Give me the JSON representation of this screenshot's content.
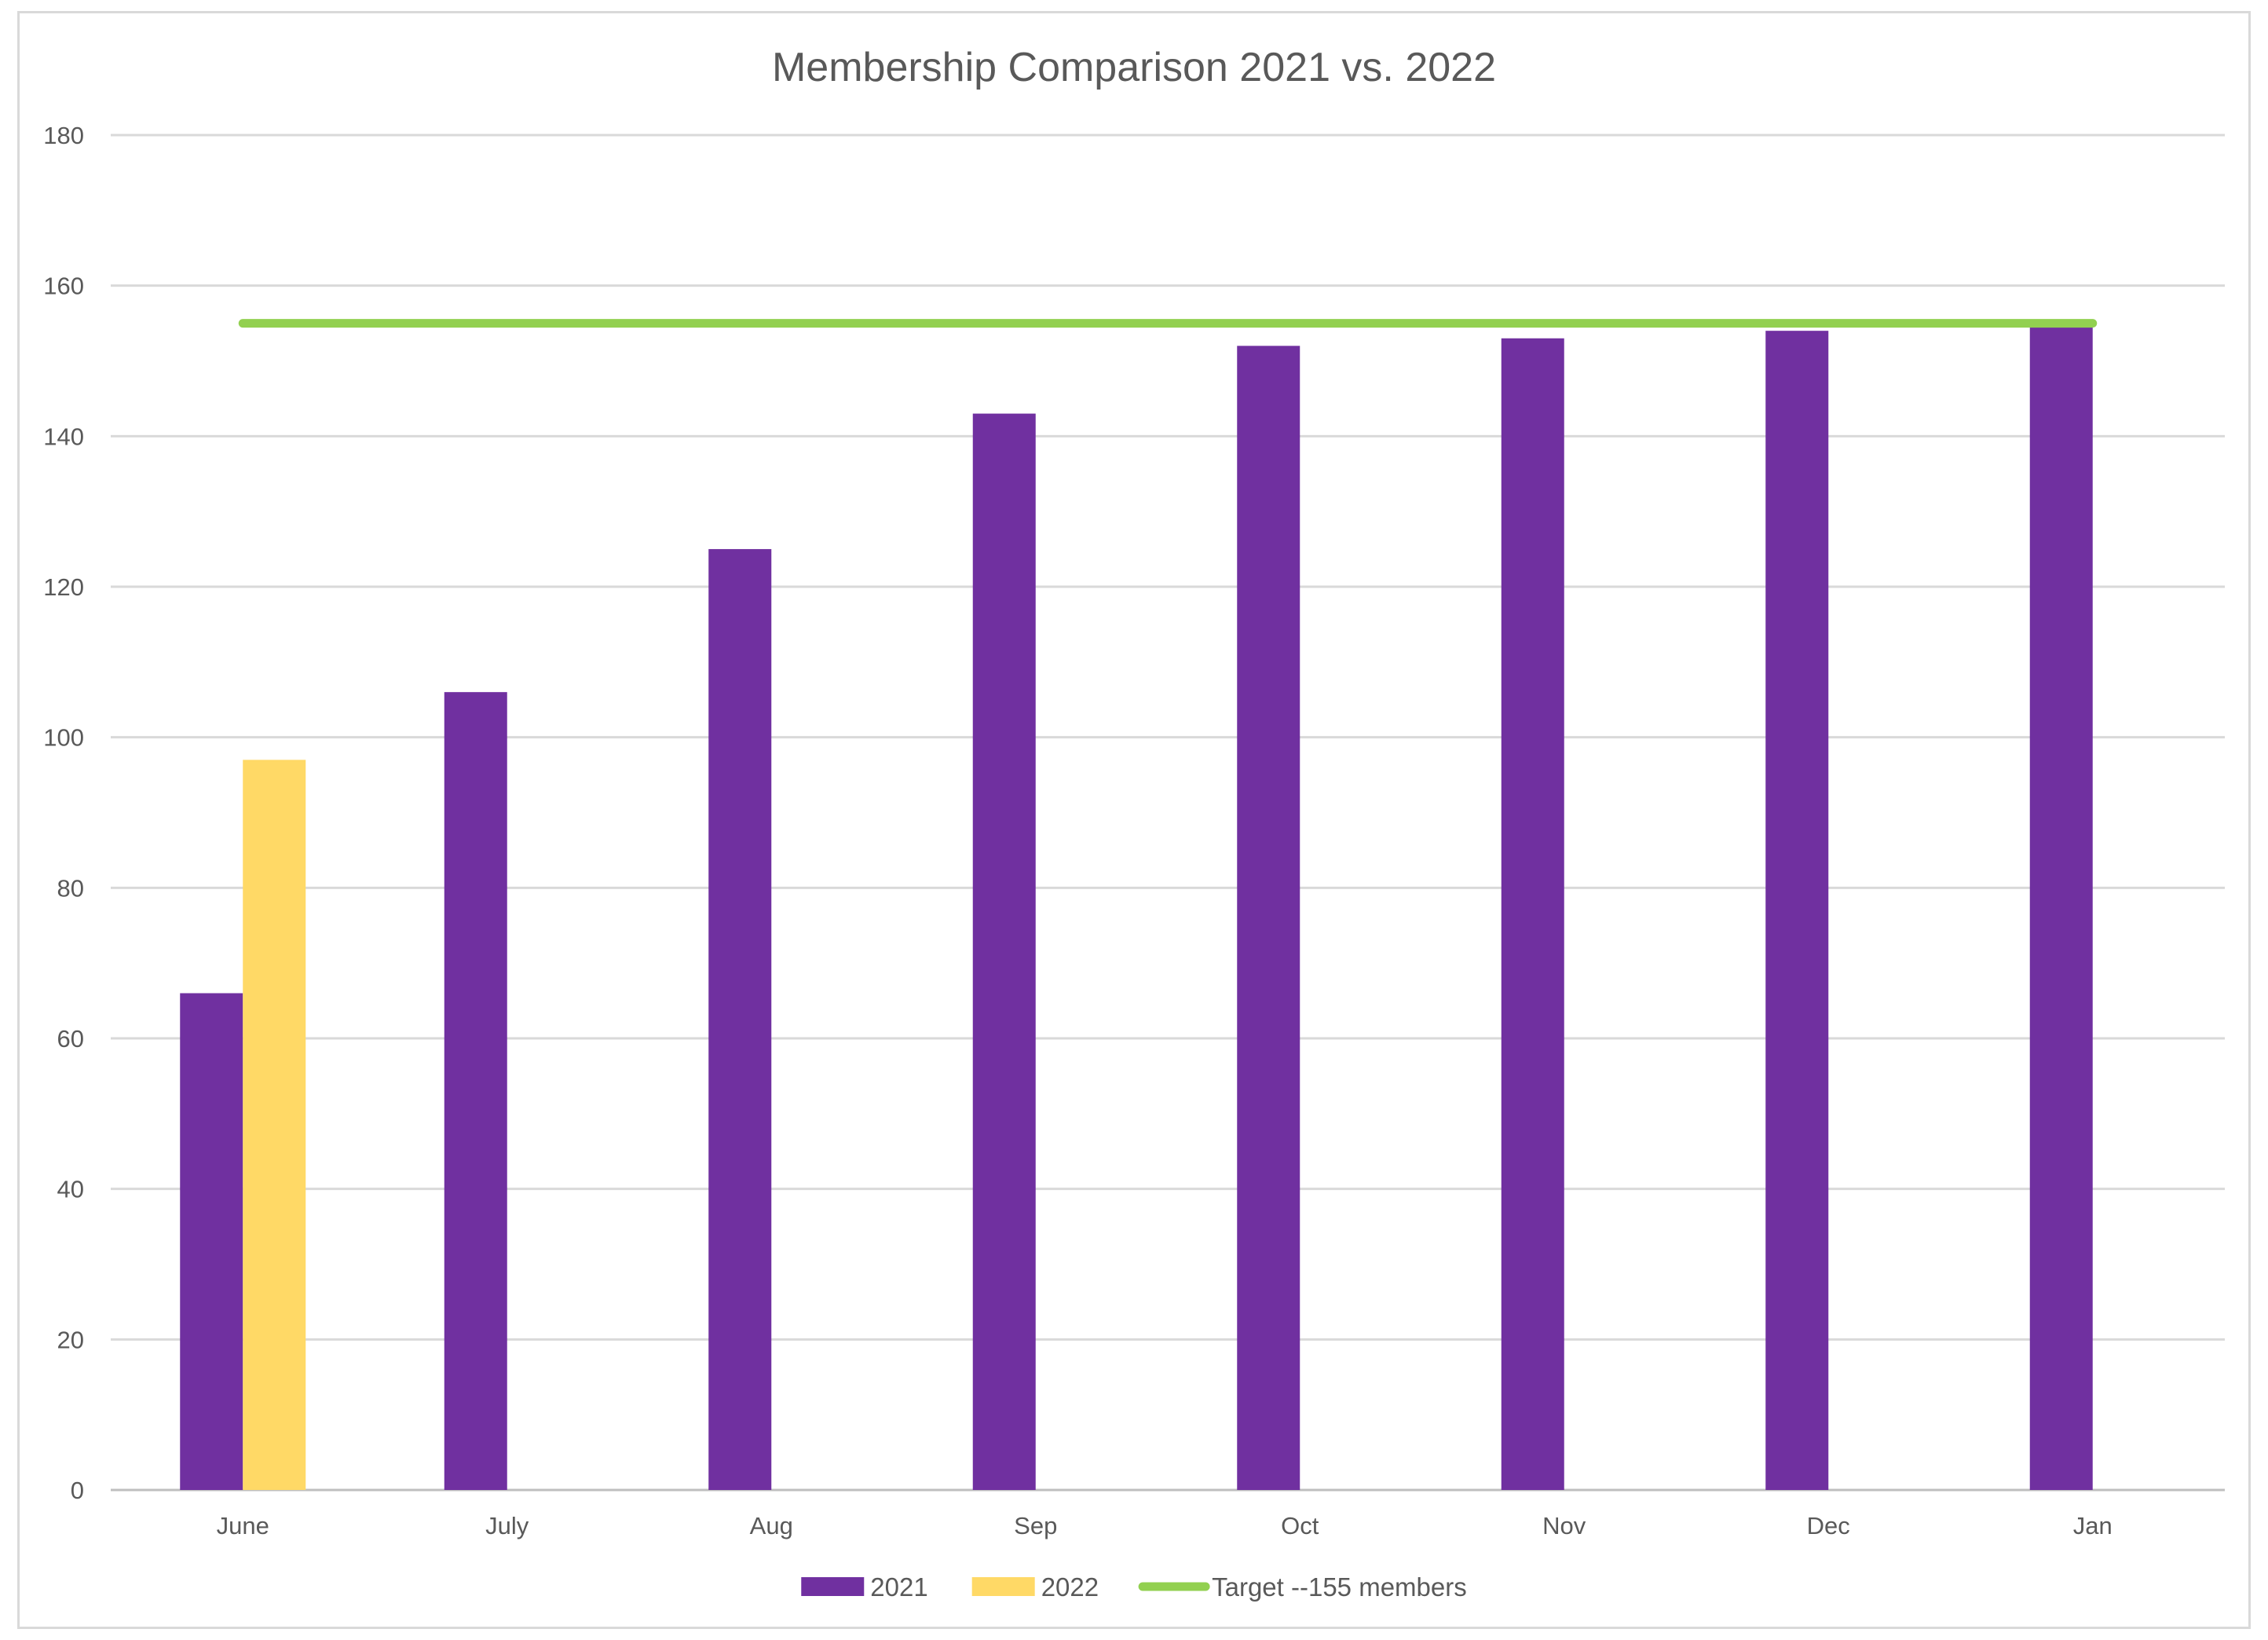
{
  "chart_data": {
    "type": "bar",
    "title": "Membership Comparison 2021 vs. 2022",
    "xlabel": "",
    "ylabel": "",
    "categories": [
      "June",
      "July",
      "Aug",
      "Sep",
      "Oct",
      "Nov",
      "Dec",
      "Jan"
    ],
    "series": [
      {
        "name": "2021",
        "type": "bar",
        "color": "#7030a0",
        "values": [
          66,
          106,
          125,
          143,
          152,
          153,
          154,
          155
        ]
      },
      {
        "name": "2022",
        "type": "bar",
        "color": "#ffd966",
        "values": [
          97,
          null,
          null,
          null,
          null,
          null,
          null,
          null
        ]
      },
      {
        "name": "Target --155 members",
        "type": "line",
        "color": "#92d050",
        "values": [
          155,
          155,
          155,
          155,
          155,
          155,
          155,
          155
        ]
      }
    ],
    "ylim": [
      0,
      180
    ],
    "yticks": [
      0,
      20,
      40,
      60,
      80,
      100,
      120,
      140,
      160,
      180
    ],
    "grid": true,
    "legend_position": "bottom"
  }
}
